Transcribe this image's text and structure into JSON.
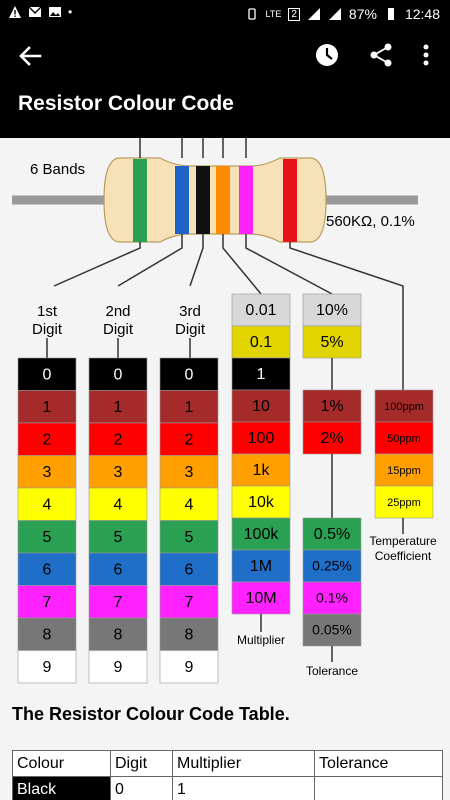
{
  "status_bar": {
    "battery": "87%",
    "time": "12:48",
    "network": "LTE",
    "sim": "2"
  },
  "app_bar": {
    "title": "Resistor Colour Code",
    "icons": [
      "back-arrow-icon",
      "history-icon",
      "share-icon",
      "more-vert-icon"
    ]
  },
  "diagram": {
    "bands_label": "6 Bands",
    "value_label": "560KΩ, 0.1%",
    "band_colors": [
      "#2aa052",
      "#1f63c8",
      "#111111",
      "#ff8a00",
      "#ff22ff",
      "#e8121a"
    ],
    "headers": {
      "digit1": [
        "1st",
        "Digit"
      ],
      "digit2": [
        "2nd",
        "Digit"
      ],
      "digit3": [
        "3rd",
        "Digit"
      ]
    },
    "digit_colors": [
      {
        "color": "#000000",
        "text_color": "#ffffff",
        "label": "0"
      },
      {
        "color": "#a52a2a",
        "text_color": "#000000",
        "label": "1"
      },
      {
        "color": "#ff0000",
        "text_color": "#000000",
        "label": "2"
      },
      {
        "color": "#ffa000",
        "text_color": "#000000",
        "label": "3"
      },
      {
        "color": "#ffff00",
        "text_color": "#000000",
        "label": "4"
      },
      {
        "color": "#2aa052",
        "text_color": "#000000",
        "label": "5"
      },
      {
        "color": "#1f6fc8",
        "text_color": "#000000",
        "label": "6"
      },
      {
        "color": "#ff22ff",
        "text_color": "#000000",
        "label": "7"
      },
      {
        "color": "#777777",
        "text_color": "#000000",
        "label": "8"
      },
      {
        "color": "#ffffff",
        "text_color": "#000000",
        "label": "9"
      }
    ],
    "multiplier": {
      "label": "Multiplier",
      "cells": [
        {
          "color": "#d8d8d8",
          "label": "0.01"
        },
        {
          "color": "#e2d400",
          "label": "0.1"
        },
        {
          "color": "#000000",
          "label": "1",
          "text_color": "#ffffff"
        },
        {
          "color": "#a52a2a",
          "label": "10"
        },
        {
          "color": "#ff0000",
          "label": "100"
        },
        {
          "color": "#ffa000",
          "label": "1k"
        },
        {
          "color": "#ffff00",
          "label": "10k"
        },
        {
          "color": "#2aa052",
          "label": "100k"
        },
        {
          "color": "#1f6fc8",
          "label": "1M"
        },
        {
          "color": "#ff22ff",
          "label": "10M"
        }
      ]
    },
    "tolerance": {
      "label": "Tolerance",
      "top_cells": [
        {
          "color": "#d8d8d8",
          "label": "10%"
        },
        {
          "color": "#e2d400",
          "label": "5%"
        }
      ],
      "mid_cells": [
        {
          "color": "#a52a2a",
          "label": "1%"
        },
        {
          "color": "#ff0000",
          "label": "2%"
        }
      ],
      "bottom_cells": [
        {
          "color": "#2aa052",
          "label": "0.5%"
        },
        {
          "color": "#1f6fc8",
          "label": "0.25%"
        },
        {
          "color": "#ff22ff",
          "label": "0.1%"
        },
        {
          "color": "#777777",
          "label": "0.05%"
        }
      ]
    },
    "temperature": {
      "label": [
        "Temperature",
        "Coefficient"
      ],
      "cells": [
        {
          "color": "#a52a2a",
          "label": "100ppm"
        },
        {
          "color": "#ff0000",
          "label": "50ppm"
        },
        {
          "color": "#ffa000",
          "label": "15ppm"
        },
        {
          "color": "#ffff00",
          "label": "25ppm"
        }
      ]
    }
  },
  "table": {
    "title": "The Resistor Colour Code Table.",
    "headers": [
      "Colour",
      "Digit",
      "Multiplier",
      "Tolerance"
    ],
    "rows": [
      [
        "Black",
        "0",
        "1",
        ""
      ]
    ]
  }
}
